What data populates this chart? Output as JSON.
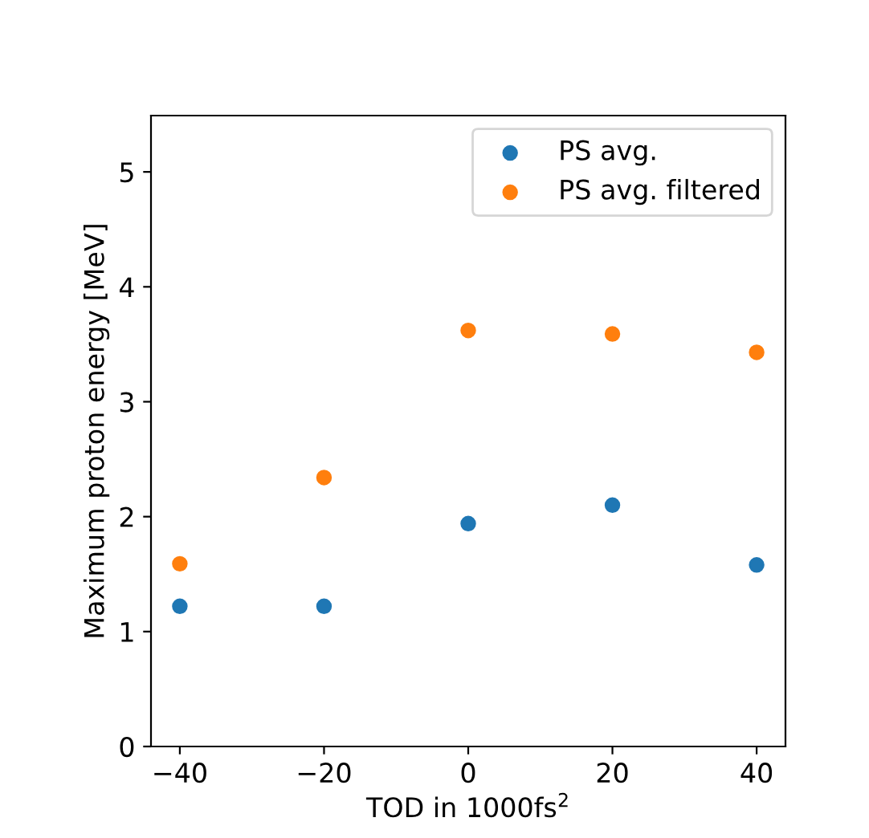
{
  "chart_data": {
    "type": "scatter",
    "xlabel": "TOD in 1000fs$^{2}$",
    "ylabel": "Maximum proton energy [MeV]",
    "x": [
      -40,
      -20,
      0,
      20,
      40
    ],
    "series": [
      {
        "name": "PS avg.",
        "color": "#1f77b4",
        "values": [
          1.22,
          1.22,
          1.94,
          2.1,
          1.58
        ]
      },
      {
        "name": "PS avg. filtered",
        "color": "#ff7f0e",
        "values": [
          1.59,
          2.34,
          3.62,
          3.59,
          3.43
        ]
      }
    ],
    "xlim": [
      -44,
      44
    ],
    "ylim": [
      0,
      5.49
    ],
    "xticks": [
      {
        "value": -40,
        "label": "−40"
      },
      {
        "value": -20,
        "label": "−20"
      },
      0,
      20,
      40
    ],
    "yticks": [
      0,
      1,
      2,
      3,
      4,
      5
    ],
    "marker": "circle",
    "legend": "top right",
    "grid": false
  }
}
